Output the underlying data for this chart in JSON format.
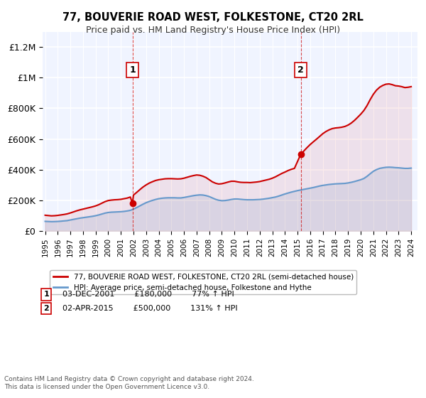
{
  "title": "77, BOUVERIE ROAD WEST, FOLKESTONE, CT20 2RL",
  "subtitle": "Price paid vs. HM Land Registry's House Price Index (HPI)",
  "red_label": "77, BOUVERIE ROAD WEST, FOLKESTONE, CT20 2RL (semi-detached house)",
  "blue_label": "HPI: Average price, semi-detached house, Folkestone and Hythe",
  "annotation1": {
    "num": "1",
    "date": "03-DEC-2001",
    "price": "£180,000",
    "hpi": "77% ↑ HPI"
  },
  "annotation2": {
    "num": "2",
    "date": "02-APR-2015",
    "price": "£500,000",
    "hpi": "131% ↑ HPI"
  },
  "footer": "Contains HM Land Registry data © Crown copyright and database right 2024.\nThis data is licensed under the Open Government Licence v3.0.",
  "hpi_years": [
    1995.0,
    1995.25,
    1995.5,
    1995.75,
    1996.0,
    1996.25,
    1996.5,
    1996.75,
    1997.0,
    1997.25,
    1997.5,
    1997.75,
    1998.0,
    1998.25,
    1998.5,
    1998.75,
    1999.0,
    1999.25,
    1999.5,
    1999.75,
    2000.0,
    2000.25,
    2000.5,
    2000.75,
    2001.0,
    2001.25,
    2001.5,
    2001.75,
    2002.0,
    2002.25,
    2002.5,
    2002.75,
    2003.0,
    2003.25,
    2003.5,
    2003.75,
    2004.0,
    2004.25,
    2004.5,
    2004.75,
    2005.0,
    2005.25,
    2005.5,
    2005.75,
    2006.0,
    2006.25,
    2006.5,
    2006.75,
    2007.0,
    2007.25,
    2007.5,
    2007.75,
    2008.0,
    2008.25,
    2008.5,
    2008.75,
    2009.0,
    2009.25,
    2009.5,
    2009.75,
    2010.0,
    2010.25,
    2010.5,
    2010.75,
    2011.0,
    2011.25,
    2011.5,
    2011.75,
    2012.0,
    2012.25,
    2012.5,
    2012.75,
    2013.0,
    2013.25,
    2013.5,
    2013.75,
    2014.0,
    2014.25,
    2014.5,
    2014.75,
    2015.0,
    2015.25,
    2015.5,
    2015.75,
    2016.0,
    2016.25,
    2016.5,
    2016.75,
    2017.0,
    2017.25,
    2017.5,
    2017.75,
    2018.0,
    2018.25,
    2018.5,
    2018.75,
    2019.0,
    2019.25,
    2019.5,
    2019.75,
    2020.0,
    2020.25,
    2020.5,
    2020.75,
    2021.0,
    2021.25,
    2021.5,
    2021.75,
    2022.0,
    2022.25,
    2022.5,
    2022.75,
    2023.0,
    2023.25,
    2023.5,
    2023.75,
    2024.0
  ],
  "hpi_values": [
    62000,
    61000,
    60000,
    60500,
    61500,
    63000,
    65000,
    67000,
    71000,
    75000,
    79000,
    83000,
    86000,
    89000,
    92000,
    95000,
    99000,
    104000,
    110000,
    116000,
    120000,
    122000,
    123000,
    124000,
    125000,
    127000,
    130000,
    134000,
    142000,
    152000,
    163000,
    174000,
    184000,
    192000,
    199000,
    205000,
    210000,
    213000,
    215000,
    216000,
    216000,
    216000,
    215000,
    215000,
    218000,
    222000,
    226000,
    230000,
    233000,
    235000,
    234000,
    230000,
    224000,
    215000,
    206000,
    200000,
    197000,
    198000,
    201000,
    205000,
    208000,
    208000,
    206000,
    204000,
    203000,
    203000,
    203000,
    204000,
    205000,
    207000,
    210000,
    213000,
    217000,
    221000,
    227000,
    234000,
    241000,
    247000,
    253000,
    258000,
    263000,
    267000,
    271000,
    275000,
    279000,
    283000,
    288000,
    293000,
    297000,
    300000,
    303000,
    305000,
    307000,
    308000,
    309000,
    310000,
    313000,
    317000,
    322000,
    328000,
    334000,
    342000,
    356000,
    373000,
    389000,
    400000,
    408000,
    412000,
    415000,
    416000,
    415000,
    413000,
    412000,
    410000,
    408000,
    408000,
    410000
  ],
  "red_years": [
    1995.0,
    1995.25,
    1995.5,
    1995.75,
    1996.0,
    1996.25,
    1996.5,
    1996.75,
    1997.0,
    1997.25,
    1997.5,
    1997.75,
    1998.0,
    1998.25,
    1998.5,
    1998.75,
    1999.0,
    1999.25,
    1999.5,
    1999.75,
    2000.0,
    2000.25,
    2000.5,
    2000.75,
    2001.0,
    2001.25,
    2001.5,
    2001.75,
    2001.917,
    2002.0,
    2002.25,
    2002.5,
    2002.75,
    2003.0,
    2003.25,
    2003.5,
    2003.75,
    2004.0,
    2004.25,
    2004.5,
    2004.75,
    2005.0,
    2005.25,
    2005.5,
    2005.75,
    2006.0,
    2006.25,
    2006.5,
    2006.75,
    2007.0,
    2007.25,
    2007.5,
    2007.75,
    2008.0,
    2008.25,
    2008.5,
    2008.75,
    2009.0,
    2009.25,
    2009.5,
    2009.75,
    2010.0,
    2010.25,
    2010.5,
    2010.75,
    2011.0,
    2011.25,
    2011.5,
    2011.75,
    2012.0,
    2012.25,
    2012.5,
    2012.75,
    2013.0,
    2013.25,
    2013.5,
    2013.75,
    2014.0,
    2014.25,
    2014.5,
    2014.75,
    2015.25,
    2015.5,
    2015.75,
    2016.0,
    2016.25,
    2016.5,
    2016.75,
    2017.0,
    2017.25,
    2017.5,
    2017.75,
    2018.0,
    2018.25,
    2018.5,
    2018.75,
    2019.0,
    2019.25,
    2019.5,
    2019.75,
    2020.0,
    2020.25,
    2020.5,
    2020.75,
    2021.0,
    2021.25,
    2021.5,
    2021.75,
    2022.0,
    2022.25,
    2022.5,
    2022.75,
    2023.0,
    2023.25,
    2023.5,
    2023.75,
    2024.0
  ],
  "red_values": [
    102000,
    100000,
    98000,
    99000,
    101000,
    104000,
    107000,
    111000,
    117000,
    124000,
    131000,
    137000,
    142000,
    147000,
    152000,
    157000,
    163000,
    171000,
    181000,
    191000,
    198000,
    201000,
    203000,
    204000,
    206000,
    210000,
    214000,
    221000,
    180000,
    234000,
    251000,
    269000,
    286000,
    300000,
    312000,
    321000,
    329000,
    334000,
    337000,
    340000,
    341000,
    341000,
    340000,
    339000,
    340000,
    344000,
    350000,
    356000,
    361000,
    365000,
    363000,
    357000,
    348000,
    334000,
    320000,
    311000,
    306000,
    308000,
    313000,
    319000,
    324000,
    324000,
    320000,
    317000,
    316000,
    316000,
    315000,
    317000,
    319000,
    322000,
    327000,
    332000,
    337000,
    344000,
    353000,
    364000,
    375000,
    384000,
    394000,
    402000,
    408000,
    500000,
    522000,
    544000,
    564000,
    582000,
    599000,
    617000,
    635000,
    649000,
    660000,
    668000,
    672000,
    674000,
    677000,
    682000,
    691000,
    704000,
    721000,
    741000,
    762000,
    786000,
    818000,
    857000,
    892000,
    919000,
    938000,
    950000,
    958000,
    960000,
    955000,
    948000,
    946000,
    942000,
    936000,
    938000,
    942000
  ],
  "sale1_year": 2001.917,
  "sale1_price": 180000,
  "sale2_year": 2015.25,
  "sale2_price": 500000,
  "vline1_year": 2001.917,
  "vline2_year": 2015.25,
  "ylim": [
    0,
    1300000
  ],
  "xlim": [
    1994.8,
    2024.5
  ],
  "yticks": [
    0,
    200000,
    400000,
    600000,
    800000,
    1000000,
    1200000
  ],
  "ytick_labels": [
    "£0",
    "£200K",
    "£400K",
    "£600K",
    "£800K",
    "£1M",
    "£1.2M"
  ],
  "bg_color": "#f0f4ff",
  "grid_color": "#ffffff",
  "red_color": "#cc0000",
  "blue_color": "#6699cc"
}
